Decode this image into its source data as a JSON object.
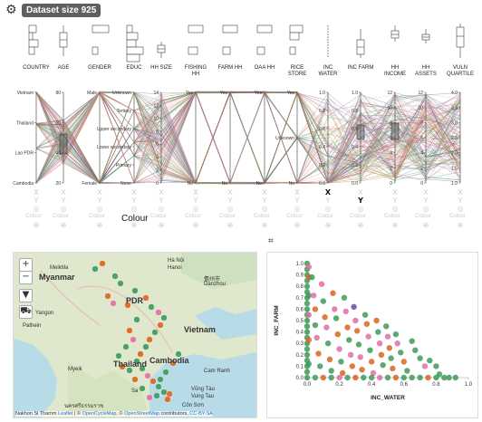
{
  "header": {
    "dataset_label": "Dataset size 925",
    "gear_icon": "gear-icon"
  },
  "variables": [
    {
      "label": "COUNTRY"
    },
    {
      "label": "AGE"
    },
    {
      "label": "GENDER"
    },
    {
      "label": "EDUC"
    },
    {
      "label": "HH SIZE"
    },
    {
      "label": "FISHING\nHH"
    },
    {
      "label": "FARM HH"
    },
    {
      "label": "OAA HH"
    },
    {
      "label": "RICE\nSTORE"
    },
    {
      "label": "INC\nWATER"
    },
    {
      "label": "INC FARM"
    },
    {
      "label": "HH\nINCOME"
    },
    {
      "label": "HH\nASSETS"
    },
    {
      "label": "VULN\nQUARTILE"
    }
  ],
  "axes": {
    "country": [
      "Vietnam",
      "Thailand",
      "Lao PDR",
      "Cambodia"
    ],
    "age": [
      "80",
      "60",
      "40",
      "20"
    ],
    "gender": [
      "Male",
      "Female"
    ],
    "educ": [
      "Unknown",
      "Tertiary",
      "Upper secondary",
      "Lower secondary",
      "Primary",
      "None"
    ],
    "hhsize": [
      "14",
      "12",
      "10",
      "8",
      "6",
      "4",
      "2",
      "0"
    ],
    "yesno": [
      "Yes",
      "No"
    ],
    "rice": [
      "Yes",
      "Unknown",
      "No"
    ],
    "inc01": [
      "1.0",
      "0.8",
      "0.6",
      "0.4",
      "0.2",
      "0.0"
    ],
    "hhincome": [
      "12",
      "10",
      "8",
      "6",
      "4",
      "2",
      "0"
    ],
    "hhassets": [
      "12",
      "10",
      "8",
      "6",
      "4",
      "2",
      "0"
    ],
    "vuln": [
      "4.0",
      "3.5",
      "3.0",
      "2.5",
      "2.0",
      "1.5",
      "1.0"
    ]
  },
  "controls": {
    "x_label": "X",
    "y_label": "Y",
    "colour_label": "Colour",
    "x_axis_index": 9,
    "y_axis_index": 10
  },
  "map": {
    "zoom_in": "+",
    "zoom_out": "−",
    "labels": [
      {
        "t": "Myanmar",
        "big": true
      },
      {
        "t": "Meiktila"
      },
      {
        "t": "Hà Nội"
      },
      {
        "t": "Hanoi"
      },
      {
        "t": "儋州市"
      },
      {
        "t": "Danzhou"
      },
      {
        "t": "Yangon"
      },
      {
        "t": "Pathein"
      },
      {
        "t": "PDR",
        "big": true
      },
      {
        "t": "Vietnam",
        "big": true
      },
      {
        "t": "Thailand",
        "big": true
      },
      {
        "t": "Cambodia",
        "big": true
      },
      {
        "t": "Myeik"
      },
      {
        "t": "Cam Ranh"
      },
      {
        "t": "Vũng Tàu"
      },
      {
        "t": "Vung Tau"
      },
      {
        "t": "Côn Sơn"
      },
      {
        "t": "นครศรีธรรมราช"
      },
      {
        "t": "Sa"
      }
    ],
    "attribution": {
      "place": "Nakhon Si Thamm",
      "leaflet": "Leaflet",
      "sep1": " | © ",
      "ocm": "OpenCycleMap",
      "sep2": ", © ",
      "osm": "OpenStreetMap",
      "sep3": " contributors, ",
      "cc": "CC-BY-SA"
    }
  },
  "chart_data": {
    "type": "scatter",
    "xlabel": "INC_WATER",
    "ylabel": "INC_FARM",
    "xlim": [
      0,
      1
    ],
    "ylim": [
      0,
      1
    ],
    "xticks": [
      "0.0",
      "0.2",
      "0.4",
      "0.6",
      "0.8",
      "1.0"
    ],
    "yticks": [
      "0.0",
      "0.1",
      "0.2",
      "0.3",
      "0.4",
      "0.5",
      "0.6",
      "0.7",
      "0.8",
      "0.9",
      "1.0"
    ],
    "colors": {
      "Vietnam": "#6b4c9a",
      "Thailand": "#e06fa6",
      "Lao PDR": "#d9661e",
      "Cambodia": "#3f9a5a"
    },
    "points": [
      [
        0.0,
        1.0,
        "#3f9a5a"
      ],
      [
        0.0,
        0.95,
        "#3f9a5a"
      ],
      [
        0.0,
        0.9,
        "#3f9a5a"
      ],
      [
        0.0,
        0.85,
        "#3f9a5a"
      ],
      [
        0.0,
        0.8,
        "#3f9a5a"
      ],
      [
        0.0,
        0.75,
        "#3f9a5a"
      ],
      [
        0.0,
        0.7,
        "#3f9a5a"
      ],
      [
        0.0,
        0.65,
        "#3f9a5a"
      ],
      [
        0.0,
        0.6,
        "#3f9a5a"
      ],
      [
        0.0,
        0.55,
        "#3f9a5a"
      ],
      [
        0.0,
        0.5,
        "#3f9a5a"
      ],
      [
        0.0,
        0.45,
        "#3f9a5a"
      ],
      [
        0.0,
        0.4,
        "#3f9a5a"
      ],
      [
        0.0,
        0.35,
        "#3f9a5a"
      ],
      [
        0.0,
        0.3,
        "#3f9a5a"
      ],
      [
        0.0,
        0.25,
        "#3f9a5a"
      ],
      [
        0.0,
        0.2,
        "#3f9a5a"
      ],
      [
        0.0,
        0.15,
        "#3f9a5a"
      ],
      [
        0.0,
        0.1,
        "#3f9a5a"
      ],
      [
        0.0,
        0.05,
        "#3f9a5a"
      ],
      [
        0.0,
        0.0,
        "#3f9a5a"
      ],
      [
        0.01,
        0.97,
        "#e06fa6"
      ],
      [
        0.01,
        0.88,
        "#d9661e"
      ],
      [
        0.01,
        0.72,
        "#3f9a5a"
      ],
      [
        0.01,
        0.55,
        "#e06fa6"
      ],
      [
        0.01,
        0.33,
        "#d9661e"
      ],
      [
        0.01,
        0.12,
        "#3f9a5a"
      ],
      [
        0.03,
        0.88,
        "#3f9a5a"
      ],
      [
        0.04,
        0.72,
        "#e06fa6"
      ],
      [
        0.05,
        0.6,
        "#d9661e"
      ],
      [
        0.05,
        0.46,
        "#3f9a5a"
      ],
      [
        0.06,
        0.35,
        "#e06fa6"
      ],
      [
        0.07,
        0.21,
        "#d9661e"
      ],
      [
        0.08,
        0.1,
        "#3f9a5a"
      ],
      [
        0.09,
        0.82,
        "#e06fa6"
      ],
      [
        0.1,
        0.67,
        "#3f9a5a"
      ],
      [
        0.11,
        0.53,
        "#d9661e"
      ],
      [
        0.12,
        0.44,
        "#e06fa6"
      ],
      [
        0.13,
        0.3,
        "#3f9a5a"
      ],
      [
        0.14,
        0.16,
        "#d9661e"
      ],
      [
        0.15,
        0.06,
        "#3f9a5a"
      ],
      [
        0.16,
        0.74,
        "#d9661e"
      ],
      [
        0.17,
        0.6,
        "#e06fa6"
      ],
      [
        0.18,
        0.52,
        "#3f9a5a"
      ],
      [
        0.19,
        0.38,
        "#d9661e"
      ],
      [
        0.2,
        0.25,
        "#e06fa6"
      ],
      [
        0.21,
        0.14,
        "#3f9a5a"
      ],
      [
        0.22,
        0.04,
        "#d9661e"
      ],
      [
        0.23,
        0.7,
        "#3f9a5a"
      ],
      [
        0.24,
        0.58,
        "#e06fa6"
      ],
      [
        0.25,
        0.44,
        "#d9661e"
      ],
      [
        0.26,
        0.33,
        "#3f9a5a"
      ],
      [
        0.27,
        0.2,
        "#e06fa6"
      ],
      [
        0.28,
        0.1,
        "#d9661e"
      ],
      [
        0.29,
        0.62,
        "#6b4c9a"
      ],
      [
        0.3,
        0.5,
        "#e06fa6"
      ],
      [
        0.31,
        0.41,
        "#d9661e"
      ],
      [
        0.32,
        0.29,
        "#3f9a5a"
      ],
      [
        0.33,
        0.18,
        "#e06fa6"
      ],
      [
        0.34,
        0.07,
        "#d9661e"
      ],
      [
        0.36,
        0.55,
        "#3f9a5a"
      ],
      [
        0.37,
        0.47,
        "#d9661e"
      ],
      [
        0.38,
        0.36,
        "#e06fa6"
      ],
      [
        0.39,
        0.24,
        "#3f9a5a"
      ],
      [
        0.4,
        0.14,
        "#d9661e"
      ],
      [
        0.41,
        0.04,
        "#e06fa6"
      ],
      [
        0.43,
        0.5,
        "#d9661e"
      ],
      [
        0.44,
        0.4,
        "#3f9a5a"
      ],
      [
        0.45,
        0.3,
        "#e06fa6"
      ],
      [
        0.46,
        0.2,
        "#d9661e"
      ],
      [
        0.47,
        0.11,
        "#3f9a5a"
      ],
      [
        0.49,
        0.45,
        "#3f9a5a"
      ],
      [
        0.5,
        0.36,
        "#e06fa6"
      ],
      [
        0.51,
        0.26,
        "#d9661e"
      ],
      [
        0.52,
        0.17,
        "#3f9a5a"
      ],
      [
        0.53,
        0.08,
        "#d9661e"
      ],
      [
        0.55,
        0.38,
        "#3f9a5a"
      ],
      [
        0.56,
        0.3,
        "#e06fa6"
      ],
      [
        0.58,
        0.22,
        "#3f9a5a"
      ],
      [
        0.6,
        0.14,
        "#d9661e"
      ],
      [
        0.62,
        0.06,
        "#3f9a5a"
      ],
      [
        0.65,
        0.32,
        "#3f9a5a"
      ],
      [
        0.67,
        0.24,
        "#3f9a5a"
      ],
      [
        0.7,
        0.17,
        "#3f9a5a"
      ],
      [
        0.73,
        0.1,
        "#e06fa6"
      ],
      [
        0.76,
        0.15,
        "#3f9a5a"
      ],
      [
        0.8,
        0.1,
        "#3f9a5a"
      ],
      [
        0.82,
        0.03,
        "#3f9a5a"
      ],
      [
        0.05,
        0.0,
        "#3f9a5a"
      ],
      [
        0.1,
        0.0,
        "#d9661e"
      ],
      [
        0.15,
        0.0,
        "#3f9a5a"
      ],
      [
        0.2,
        0.0,
        "#e06fa6"
      ],
      [
        0.25,
        0.0,
        "#3f9a5a"
      ],
      [
        0.3,
        0.0,
        "#d9661e"
      ],
      [
        0.35,
        0.0,
        "#3f9a5a"
      ],
      [
        0.4,
        0.0,
        "#3f9a5a"
      ],
      [
        0.45,
        0.0,
        "#e06fa6"
      ],
      [
        0.5,
        0.0,
        "#3f9a5a"
      ],
      [
        0.55,
        0.0,
        "#d9661e"
      ],
      [
        0.6,
        0.0,
        "#3f9a5a"
      ],
      [
        0.65,
        0.0,
        "#3f9a5a"
      ],
      [
        0.7,
        0.0,
        "#3f9a5a"
      ],
      [
        0.75,
        0.0,
        "#d9661e"
      ],
      [
        0.8,
        0.0,
        "#3f9a5a"
      ],
      [
        0.85,
        0.0,
        "#3f9a5a"
      ],
      [
        0.88,
        0.0,
        "#3f9a5a"
      ],
      [
        0.92,
        0.0,
        "#3f9a5a"
      ]
    ]
  }
}
